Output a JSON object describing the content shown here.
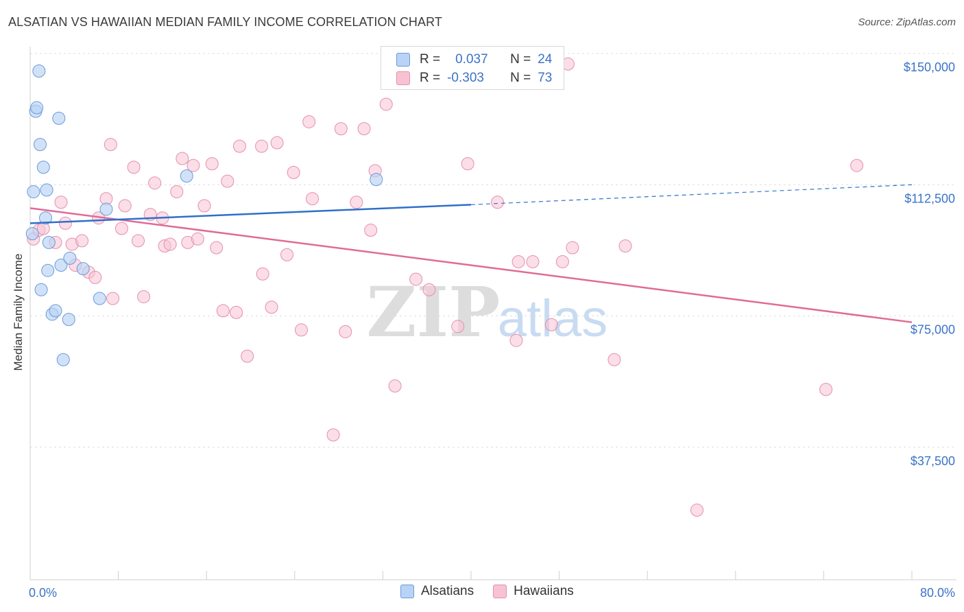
{
  "title": "ALSATIAN VS HAWAIIAN MEDIAN FAMILY INCOME CORRELATION CHART",
  "source": "Source: ZipAtlas.com",
  "watermark": {
    "zip": "ZIP",
    "atlas": "atlas"
  },
  "colors": {
    "alsatian_fill": "#b8d3f5",
    "alsatian_stroke": "#6a9ad8",
    "alsatian_line": "#2f6fca",
    "hawaiian_fill": "#f7c3d3",
    "hawaiian_stroke": "#e58fab",
    "hawaiian_line": "#e06b96",
    "axis_label": "#3b73c7"
  },
  "legend": {
    "alsatian": {
      "r_label": "R =",
      "r_value": "0.037",
      "n_label": "N =",
      "n_value": "24"
    },
    "hawaiian": {
      "r_label": "R =",
      "r_value": "-0.303",
      "n_label": "N =",
      "n_value": "73"
    }
  },
  "bottom_legend": {
    "alsatians": "Alsatians",
    "hawaiians": "Hawaiians"
  },
  "chart_data": {
    "type": "scatter",
    "title": "ALSATIAN VS HAWAIIAN MEDIAN FAMILY INCOME CORRELATION CHART",
    "ylabel": "Median Family Income",
    "xlabel": "",
    "xlim": [
      0,
      80
    ],
    "ylim": [
      0,
      155000
    ],
    "x_tick_labels": [
      "0.0%",
      "80.0%"
    ],
    "y_ticks": [
      {
        "value": 150000,
        "label": "$150,000"
      },
      {
        "value": 112500,
        "label": "$112,500"
      },
      {
        "value": 75000,
        "label": "$75,000"
      },
      {
        "value": 37500,
        "label": "$37,500"
      }
    ],
    "grid": true,
    "series": [
      {
        "name": "Alsatians",
        "r": 0.037,
        "n": 24,
        "trend": {
          "x0": 0,
          "y0": 101500,
          "x1": 40,
          "y1": 106800,
          "dashed_to_x": 80,
          "dashed_to_y": 112500
        },
        "points": [
          [
            0.2,
            98500
          ],
          [
            0.3,
            110500
          ],
          [
            0.5,
            133500
          ],
          [
            0.6,
            134500
          ],
          [
            0.8,
            145000
          ],
          [
            0.9,
            124000
          ],
          [
            1.0,
            82500
          ],
          [
            1.2,
            117500
          ],
          [
            1.4,
            103000
          ],
          [
            1.5,
            111000
          ],
          [
            1.6,
            88000
          ],
          [
            1.7,
            96000
          ],
          [
            2.0,
            75500
          ],
          [
            2.3,
            76500
          ],
          [
            2.6,
            131500
          ],
          [
            2.8,
            89500
          ],
          [
            3.0,
            62500
          ],
          [
            3.5,
            74000
          ],
          [
            3.6,
            91500
          ],
          [
            4.8,
            88500
          ],
          [
            6.3,
            80000
          ],
          [
            6.9,
            105500
          ],
          [
            14.2,
            115000
          ],
          [
            31.4,
            114000
          ]
        ]
      },
      {
        "name": "Hawaiians",
        "r": -0.303,
        "n": 73,
        "trend": {
          "x0": 0,
          "y0": 105800,
          "x1": 80,
          "y1": 73200
        },
        "points": [
          [
            0.3,
            97000
          ],
          [
            0.8,
            99500
          ],
          [
            1.2,
            100000
          ],
          [
            2.3,
            96000
          ],
          [
            2.8,
            107500
          ],
          [
            3.2,
            101500
          ],
          [
            3.8,
            95500
          ],
          [
            4.1,
            89500
          ],
          [
            4.7,
            96500
          ],
          [
            5.3,
            87500
          ],
          [
            5.9,
            86000
          ],
          [
            6.2,
            103000
          ],
          [
            6.9,
            108500
          ],
          [
            7.3,
            124000
          ],
          [
            7.5,
            80000
          ],
          [
            8.3,
            100000
          ],
          [
            8.6,
            106500
          ],
          [
            9.4,
            117500
          ],
          [
            9.8,
            96500
          ],
          [
            10.3,
            80500
          ],
          [
            10.9,
            104000
          ],
          [
            11.3,
            113000
          ],
          [
            12.0,
            103000
          ],
          [
            12.2,
            95000
          ],
          [
            12.7,
            95500
          ],
          [
            13.3,
            110500
          ],
          [
            13.8,
            120000
          ],
          [
            14.3,
            96000
          ],
          [
            14.8,
            118000
          ],
          [
            15.2,
            97000
          ],
          [
            15.8,
            106500
          ],
          [
            16.5,
            118500
          ],
          [
            16.9,
            94500
          ],
          [
            17.5,
            76500
          ],
          [
            17.9,
            113500
          ],
          [
            18.7,
            76000
          ],
          [
            19.0,
            123500
          ],
          [
            19.7,
            63500
          ],
          [
            21.0,
            123500
          ],
          [
            21.1,
            87000
          ],
          [
            21.9,
            77500
          ],
          [
            22.4,
            124500
          ],
          [
            23.3,
            92500
          ],
          [
            23.9,
            116000
          ],
          [
            24.6,
            71000
          ],
          [
            25.3,
            130500
          ],
          [
            25.6,
            108500
          ],
          [
            27.5,
            41000
          ],
          [
            28.2,
            128500
          ],
          [
            28.6,
            70500
          ],
          [
            29.6,
            107500
          ],
          [
            30.3,
            128500
          ],
          [
            30.9,
            99500
          ],
          [
            31.3,
            116500
          ],
          [
            32.3,
            135500
          ],
          [
            33.1,
            55000
          ],
          [
            35.0,
            85500
          ],
          [
            36.2,
            82500
          ],
          [
            38.8,
            72000
          ],
          [
            39.7,
            118500
          ],
          [
            42.4,
            107500
          ],
          [
            44.1,
            68000
          ],
          [
            44.3,
            90500
          ],
          [
            45.6,
            90500
          ],
          [
            47.3,
            72500
          ],
          [
            48.3,
            90500
          ],
          [
            48.8,
            147000
          ],
          [
            49.2,
            94500
          ],
          [
            53.0,
            62500
          ],
          [
            54.0,
            95000
          ],
          [
            60.5,
            19500
          ],
          [
            72.2,
            54000
          ],
          [
            75.0,
            118000
          ]
        ]
      }
    ]
  }
}
